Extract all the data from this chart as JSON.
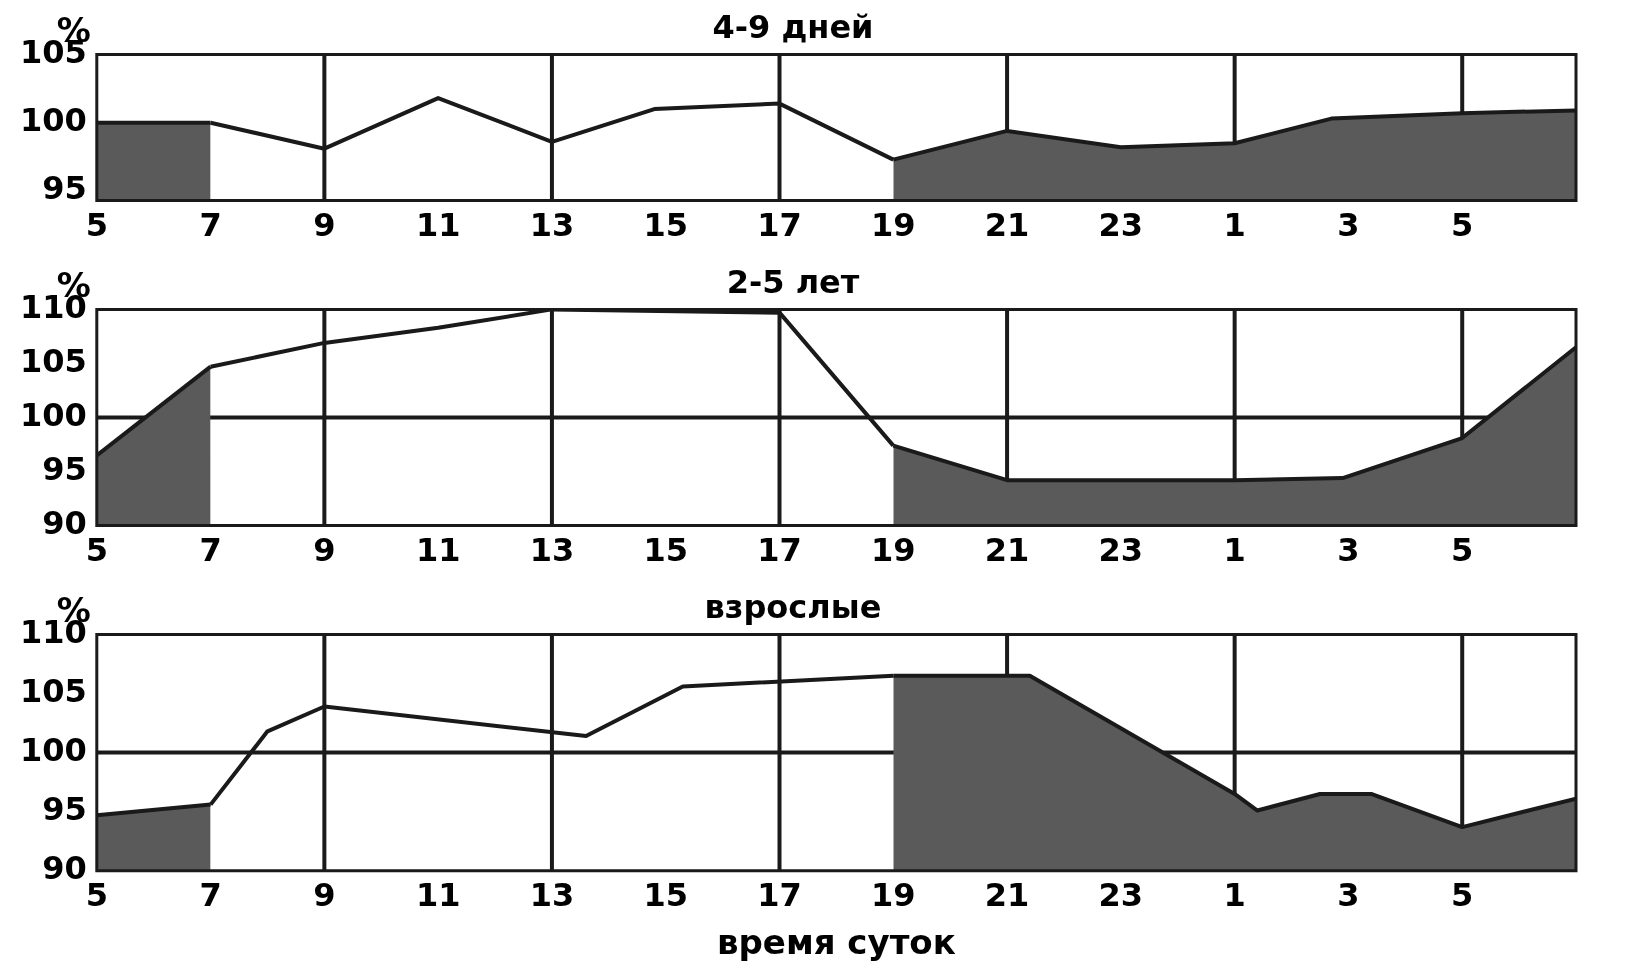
{
  "chart_data": [
    {
      "type": "line",
      "title": "4-9 дней",
      "ylabel": "%",
      "xlim": [
        "--03-15T05:00",
        "--03-16T07:00"
      ],
      "ylim": [
        94.3,
        105
      ],
      "yticks": [
        95,
        100,
        105
      ],
      "xticks": [
        {
          "value": "--03-15T05:00",
          "label": "5"
        },
        {
          "value": "--03-15T07:00",
          "label": "7"
        },
        {
          "value": "--03-15T09:00",
          "label": "9"
        },
        {
          "value": "--03-15T11:00",
          "label": "11"
        },
        {
          "value": "--03-15T13:00",
          "label": "13"
        },
        {
          "value": "--03-15T15:00",
          "label": "15"
        },
        {
          "value": "--03-15T17:00",
          "label": "17"
        },
        {
          "value": "--03-15T19:00",
          "label": "19"
        },
        {
          "value": "--03-15T21:00",
          "label": "21"
        },
        {
          "value": "--03-15T23:00",
          "label": "23"
        },
        {
          "value": "--03-16T01:00",
          "label": "1"
        },
        {
          "value": "--03-16T03:00",
          "label": "3"
        },
        {
          "value": "--03-16T05:00",
          "label": "5"
        }
      ],
      "series": [
        {
          "type": "area",
          "color": "#5a5a5a",
          "x": [
            "--03-15T05:00",
            "--03-15T07:00"
          ],
          "values": [
            100,
            100
          ]
        },
        {
          "type": "line",
          "color": "#1a1a1a",
          "x": [
            "--03-15T07:00",
            "--03-15T09:00",
            "--03-15T11:00",
            "--03-15T13:00",
            "--03-15T14:48",
            "--03-15T17:00",
            "--03-15T19:00"
          ],
          "values": [
            100,
            98.1,
            101.8,
            98.6,
            101,
            101.4,
            97.3
          ]
        },
        {
          "type": "area",
          "color": "#5a5a5a",
          "x": [
            "--03-15T19:00",
            "--03-15T21:00",
            "--03-15T23:00",
            "--03-16T01:00",
            "--03-16T02:42",
            "--03-16T05:00",
            "--03-16T07:00"
          ],
          "values": [
            97.3,
            99.4,
            98.2,
            98.5,
            100.3,
            100.7,
            100.9
          ]
        }
      ],
      "ref_lines": [
        {
          "axis": "x",
          "value": "--03-15T09:00"
        },
        {
          "axis": "x",
          "value": "--03-15T13:00"
        },
        {
          "axis": "x",
          "value": "--03-15T17:00"
        },
        {
          "axis": "x",
          "value": "--03-15T21:00"
        },
        {
          "axis": "x",
          "value": "--03-16T01:00"
        },
        {
          "axis": "x",
          "value": "--03-16T05:00"
        }
      ]
    },
    {
      "type": "line",
      "title": "2-5 лет",
      "ylabel": "%",
      "xlim": [
        "--03-15T05:00",
        "--03-16T07:00"
      ],
      "ylim": [
        90,
        110
      ],
      "yticks": [
        90,
        95,
        100,
        105,
        110
      ],
      "xticks": [
        {
          "value": "--03-15T05:00",
          "label": "5"
        },
        {
          "value": "--03-15T07:00",
          "label": "7"
        },
        {
          "value": "--03-15T09:00",
          "label": "9"
        },
        {
          "value": "--03-15T11:00",
          "label": "11"
        },
        {
          "value": "--03-15T13:00",
          "label": "13"
        },
        {
          "value": "--03-15T15:00",
          "label": "15"
        },
        {
          "value": "--03-15T17:00",
          "label": "17"
        },
        {
          "value": "--03-15T19:00",
          "label": "19"
        },
        {
          "value": "--03-15T21:00",
          "label": "21"
        },
        {
          "value": "--03-15T23:00",
          "label": "23"
        },
        {
          "value": "--03-16T01:00",
          "label": "1"
        },
        {
          "value": "--03-16T03:00",
          "label": "3"
        },
        {
          "value": "--03-16T05:00",
          "label": "5"
        }
      ],
      "series": [
        {
          "type": "area",
          "color": "#5a5a5a",
          "x": [
            "--03-15T05:00",
            "--03-15T07:00"
          ],
          "values": [
            96.5,
            104.7
          ]
        },
        {
          "type": "line",
          "color": "#1a1a1a",
          "x": [
            "--03-15T07:00",
            "--03-15T09:00",
            "--03-15T11:00",
            "--03-15T13:00",
            "--03-15T17:00",
            "--03-15T19:00"
          ],
          "values": [
            104.7,
            106.9,
            108.3,
            110,
            109.7,
            97.4
          ]
        },
        {
          "type": "area",
          "color": "#5a5a5a",
          "x": [
            "--03-15T19:00",
            "--03-15T21:00",
            "--03-16T01:00",
            "--03-16T02:54",
            "--03-16T05:00",
            "--03-16T07:00"
          ],
          "values": [
            97.4,
            94.2,
            94.2,
            94.4,
            98.1,
            106.5
          ]
        }
      ],
      "ref_lines": [
        {
          "axis": "y",
          "value": 100
        },
        {
          "axis": "x",
          "value": "--03-15T09:00"
        },
        {
          "axis": "x",
          "value": "--03-15T13:00"
        },
        {
          "axis": "x",
          "value": "--03-15T17:00"
        },
        {
          "axis": "x",
          "value": "--03-15T21:00"
        },
        {
          "axis": "x",
          "value": "--03-16T01:00"
        },
        {
          "axis": "x",
          "value": "--03-16T05:00"
        }
      ]
    },
    {
      "type": "line",
      "title": "взрослые",
      "ylabel": "%",
      "xlabel": "время суток",
      "xlim": [
        "--03-15T05:00",
        "--03-16T07:00"
      ],
      "ylim": [
        90,
        110
      ],
      "yticks": [
        90,
        95,
        100,
        105,
        110
      ],
      "xticks": [
        {
          "value": "--03-15T05:00",
          "label": "5"
        },
        {
          "value": "--03-15T07:00",
          "label": "7"
        },
        {
          "value": "--03-15T09:00",
          "label": "9"
        },
        {
          "value": "--03-15T11:00",
          "label": "11"
        },
        {
          "value": "--03-15T13:00",
          "label": "13"
        },
        {
          "value": "--03-15T15:00",
          "label": "15"
        },
        {
          "value": "--03-15T17:00",
          "label": "17"
        },
        {
          "value": "--03-15T19:00",
          "label": "19"
        },
        {
          "value": "--03-15T21:00",
          "label": "21"
        },
        {
          "value": "--03-15T23:00",
          "label": "23"
        },
        {
          "value": "--03-16T01:00",
          "label": "1"
        },
        {
          "value": "--03-16T03:00",
          "label": "3"
        },
        {
          "value": "--03-16T05:00",
          "label": "5"
        }
      ],
      "series": [
        {
          "type": "area",
          "color": "#5a5a5a",
          "x": [
            "--03-15T05:00",
            "--03-15T07:00"
          ],
          "values": [
            94.7,
            95.6
          ]
        },
        {
          "type": "line",
          "color": "#1a1a1a",
          "x": [
            "--03-15T07:00",
            "--03-15T08:00",
            "--03-15T09:00",
            "--03-15T13:36",
            "--03-15T15:18",
            "--03-15T19:00"
          ],
          "values": [
            95.6,
            101.8,
            103.9,
            101.4,
            105.6,
            106.5
          ]
        },
        {
          "type": "area",
          "color": "#5a5a5a",
          "x": [
            "--03-15T19:00",
            "--03-15T21:24",
            "--03-16T01:00",
            "--03-16T01:24",
            "--03-16T02:30",
            "--03-16T03:24",
            "--03-16T05:00",
            "--03-16T07:00"
          ],
          "values": [
            106.5,
            106.5,
            96.5,
            95.1,
            96.5,
            96.5,
            93.7,
            96.1
          ]
        }
      ],
      "ref_lines": [
        {
          "axis": "y",
          "value": 100
        },
        {
          "axis": "x",
          "value": "--03-15T09:00"
        },
        {
          "axis": "x",
          "value": "--03-15T13:00"
        },
        {
          "axis": "x",
          "value": "--03-15T17:00"
        },
        {
          "axis": "x",
          "value": "--03-15T21:00"
        },
        {
          "axis": "x",
          "value": "--03-16T01:00"
        },
        {
          "axis": "x",
          "value": "--03-16T05:00"
        }
      ]
    }
  ]
}
